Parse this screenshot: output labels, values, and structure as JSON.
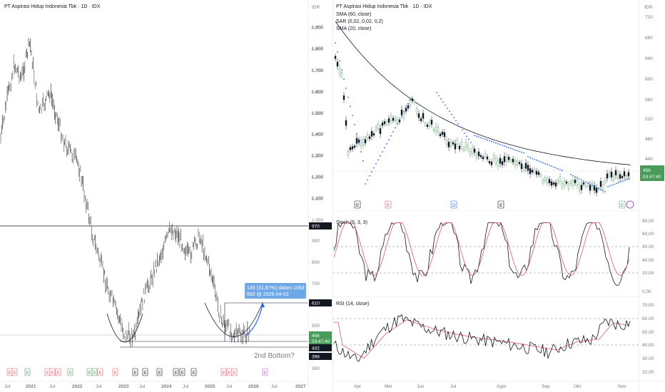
{
  "left_chart": {
    "title": "PT Aspirasi Hidup Indonesia Tbk · 1D · IDX",
    "currency": "IDR",
    "y_ticks": [
      "1.900",
      "1.800",
      "1.700",
      "1.600",
      "1.500",
      "1.400",
      "1.300",
      "1.200",
      "1.100",
      "1.000",
      "900",
      "800",
      "700",
      "500",
      "300"
    ],
    "x_ticks": [
      "Jul",
      "2021",
      "Jul",
      "2022",
      "Jul",
      "2023",
      "Jul",
      "2024",
      "Jul",
      "2025",
      "Jul",
      "2026",
      "Jul",
      "2027"
    ],
    "price_labels": [
      {
        "value": "970",
        "color": "#131722"
      },
      {
        "value": "610",
        "color": "#131722"
      },
      {
        "value": "456",
        "color": "#4a9a5a",
        "sub": "03:47:40"
      },
      {
        "value": "432",
        "color": "#131722"
      },
      {
        "value": "398",
        "color": "#131722"
      }
    ],
    "projection_text": "145 (31,87%) dalam 106d",
    "projection_subtext": "600 @ 2026-04-02",
    "annotation": "2nd Bottom?",
    "event_badges": [
      "E",
      "E",
      "E",
      "E",
      "E",
      "E",
      "E",
      "E",
      "E",
      "E",
      "E",
      "E",
      "E",
      "E",
      "E",
      "E",
      "E"
    ]
  },
  "right_chart": {
    "title": "PT Aspirasi Hidup Indonesia Tbk · 1D · IDX",
    "legends": [
      "SMA (60, close)",
      "SAR (0,02, 0,02, 0,2)",
      "SMA (20, close)"
    ],
    "currency": "IDR",
    "y_ticks": [
      "720",
      "680",
      "640",
      "600",
      "560",
      "520",
      "480",
      "440",
      "400"
    ],
    "left_ticks": [
      "1.900",
      "1.800",
      "1.700",
      "1.600",
      "1.500",
      "1.400",
      "1.300",
      "1.200",
      "1.100"
    ],
    "price_label": "456",
    "price_timer": "03:47:40",
    "x_ticks": [
      "Apr",
      "Mei",
      "Jun",
      "Jul",
      "Agst",
      "Sep",
      "Okt",
      "Nov"
    ],
    "event_badges": [
      "E",
      "E",
      "D",
      "E",
      "E"
    ]
  },
  "stoch": {
    "legend": "Stoch (5, 3, 3)",
    "y_ticks": [
      "80,00",
      "60,00",
      "40,00",
      "20,00",
      "0,00"
    ]
  },
  "rsi": {
    "legend": "RSI (14, close)",
    "y_ticks": [
      "70,00",
      "60,00",
      "50,00",
      "40,00",
      "30,00",
      "20,00"
    ]
  },
  "chart_data": {
    "type": "line",
    "title": "PT Aspirasi Hidup Indonesia Tbk · 1D · IDX",
    "series": [
      {
        "name": "SMA (60, close)",
        "values": [
          720,
          690,
          660,
          630,
          600,
          575,
          555,
          535,
          520,
          508,
          500,
          495,
          490,
          480,
          470,
          462,
          455,
          450
        ]
      },
      {
        "name": "Stoch (5, 3, 3)",
        "values": [
          50,
          20,
          75,
          30,
          80,
          20,
          60,
          25,
          70,
          30,
          75,
          20,
          65,
          25,
          70,
          30,
          80,
          45
        ]
      },
      {
        "name": "RSI (14, close)",
        "values": [
          38,
          30,
          45,
          55,
          62,
          52,
          48,
          45,
          42,
          38,
          45,
          40,
          35,
          42,
          45,
          50,
          58,
          58
        ]
      }
    ],
    "levels": [
      970,
      610,
      456,
      432,
      398
    ],
    "ylim_left": [
      300,
      1900
    ],
    "ylim_right": [
      400,
      720
    ],
    "ylim_stoch": [
      0,
      80
    ],
    "ylim_rsi": [
      20,
      70
    ]
  }
}
